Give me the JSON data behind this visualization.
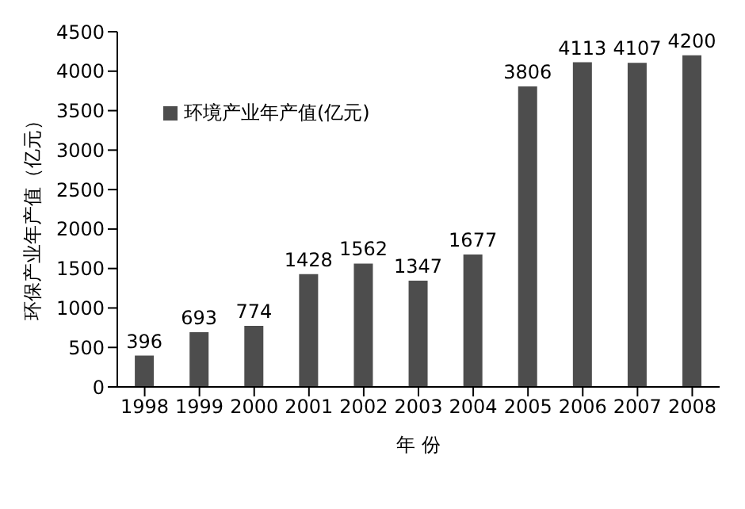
{
  "chart_data": {
    "type": "bar",
    "xlabel": "年 份",
    "ylabel": "环保产业年产值（亿元）",
    "categories": [
      "1998",
      "1999",
      "2000",
      "2001",
      "2002",
      "2003",
      "2004",
      "2005",
      "2006",
      "2007",
      "2008"
    ],
    "series": [
      {
        "name": "环境产业年产值(亿元)",
        "color": "#4d4d4d",
        "values": [
          396,
          693,
          774,
          1428,
          1562,
          1347,
          1677,
          3806,
          4113,
          4107,
          4200
        ]
      }
    ],
    "ylim": [
      0,
      4500
    ],
    "yticks": [
      0,
      500,
      1000,
      1500,
      2000,
      2500,
      3000,
      3500,
      4000,
      4500
    ],
    "data_labels": true,
    "legend": "top left",
    "grid": false
  }
}
